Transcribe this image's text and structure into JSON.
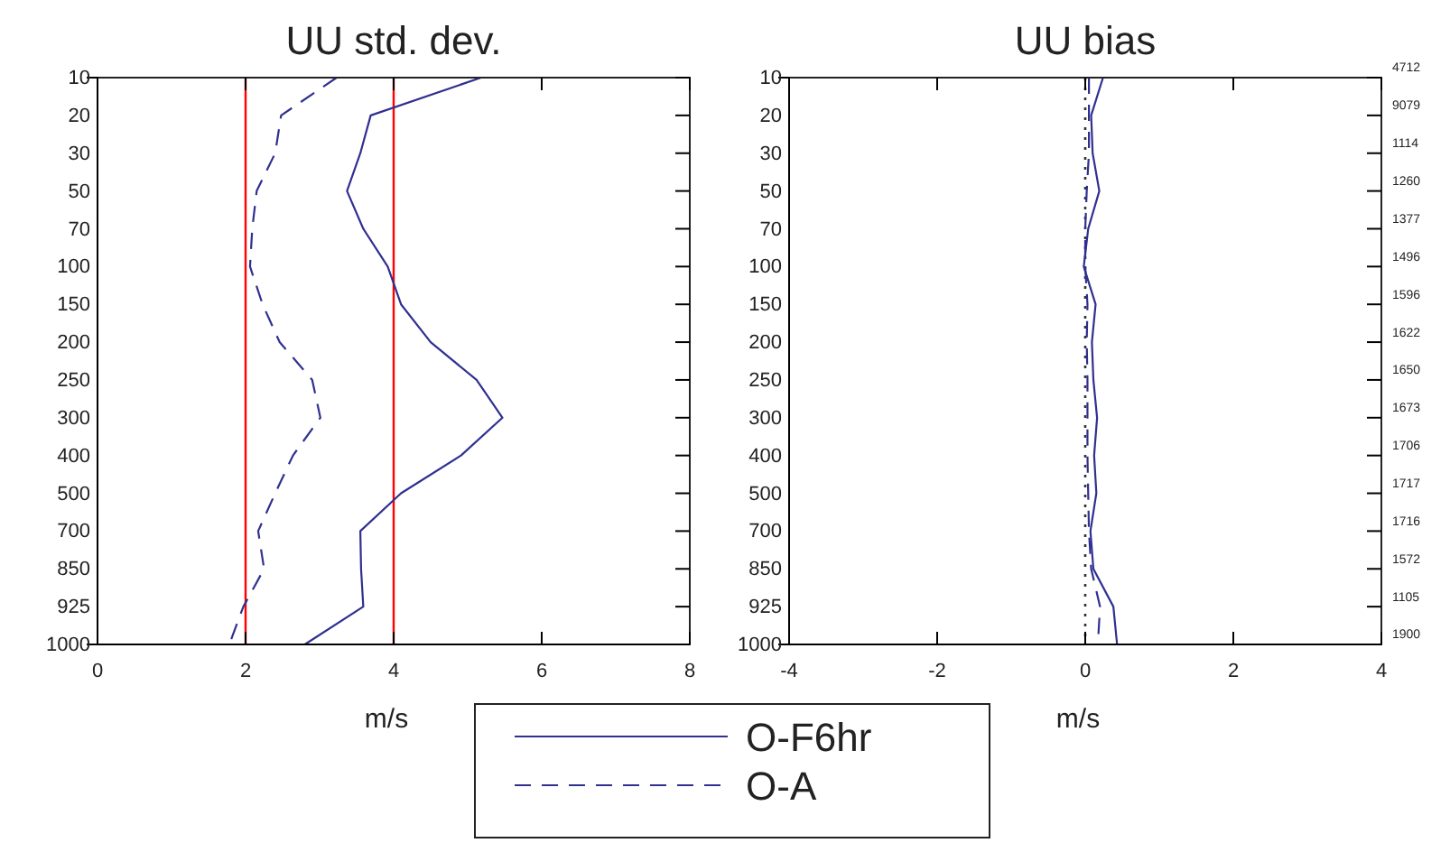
{
  "chart_data": [
    {
      "type": "line",
      "title": "UU std. dev.",
      "xlabel": "m/s",
      "orientation": "horizontal",
      "categories": [
        "10",
        "20",
        "30",
        "50",
        "70",
        "100",
        "150",
        "200",
        "250",
        "300",
        "400",
        "500",
        "700",
        "850",
        "925",
        "1000"
      ],
      "xlim": [
        0,
        8
      ],
      "xticks": [
        0,
        2,
        4,
        6,
        8
      ],
      "legend": "bottom",
      "series": [
        {
          "name": "O-F6hr",
          "color": "#303090",
          "line_style": "solid",
          "values": [
            5.18,
            3.69,
            3.55,
            3.37,
            3.59,
            3.92,
            4.1,
            4.5,
            5.12,
            5.47,
            4.91,
            4.1,
            3.55,
            3.56,
            3.59,
            2.8
          ]
        },
        {
          "name": "O-A",
          "color": "#303090",
          "line_style": "dashed",
          "values": [
            3.23,
            2.48,
            2.4,
            2.15,
            2.09,
            2.06,
            2.23,
            2.46,
            2.9,
            3.01,
            2.64,
            2.4,
            2.17,
            2.25,
            1.97,
            1.78
          ]
        }
      ],
      "ref_lines": [
        {
          "axis": "x",
          "value": 2,
          "color": "#ff0000",
          "line_style": "solid"
        },
        {
          "axis": "x",
          "value": 4,
          "color": "#ff0000",
          "line_style": "solid"
        }
      ]
    },
    {
      "type": "line",
      "title": "UU bias",
      "xlabel": "m/s",
      "orientation": "horizontal",
      "categories": [
        "10",
        "20",
        "30",
        "50",
        "70",
        "100",
        "150",
        "200",
        "250",
        "300",
        "400",
        "500",
        "700",
        "850",
        "925",
        "1000"
      ],
      "xlim": [
        -4,
        4
      ],
      "xticks": [
        -4,
        -2,
        0,
        2,
        4
      ],
      "series": [
        {
          "color": "#303090",
          "line_style": "solid",
          "values": [
            0.24,
            0.08,
            0.1,
            0.19,
            0.04,
            -0.02,
            0.14,
            0.09,
            0.11,
            0.16,
            0.12,
            0.15,
            0.07,
            0.11,
            0.38,
            0.43
          ]
        },
        {
          "color": "#303090",
          "line_style": "dashed",
          "values": [
            0.05,
            0.05,
            0.05,
            0.02,
            0.0,
            0.0,
            0.03,
            0.02,
            0.03,
            0.03,
            0.03,
            0.04,
            0.05,
            0.08,
            0.2,
            0.17
          ]
        }
      ],
      "ref_lines": [
        {
          "axis": "x",
          "value": 0,
          "color": "#333333",
          "line_style": "dotted"
        }
      ],
      "annotations": [
        "4712",
        "9079",
        "1114",
        "1260",
        "1377",
        "1496",
        "1596",
        "1622",
        "1650",
        "1673",
        "1706",
        "1717",
        "1716",
        "1572",
        "1105",
        "1900"
      ]
    }
  ]
}
